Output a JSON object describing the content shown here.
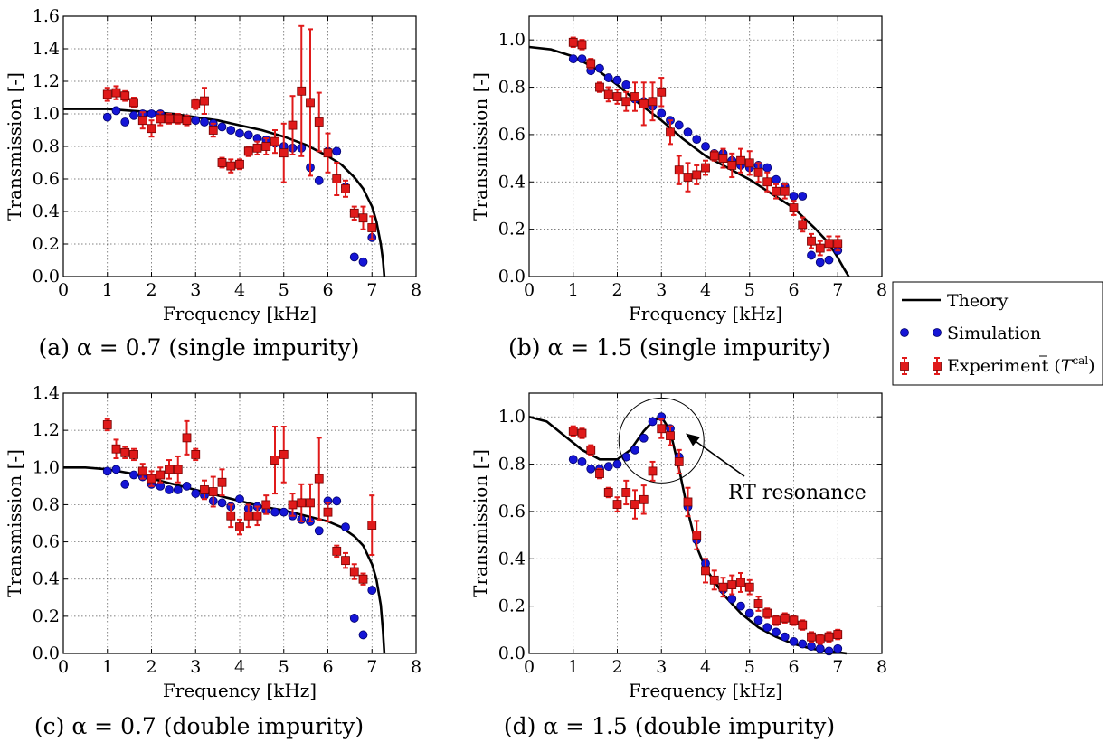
{
  "legend": {
    "theory": "Theory",
    "simulation": "Simulation",
    "experiment": "Experiment",
    "experiment_symbol_base": "T",
    "experiment_symbol_sup": "cal"
  },
  "colors": {
    "theory": "#000000",
    "simulation": "#1515d6",
    "experiment": "#e01a1a"
  },
  "chart_data": [
    {
      "type": "scatter",
      "caption": "(a) α = 0.7 (single impurity)",
      "xlabel": "Frequency [kHz]",
      "ylabel": "Transmission [-]",
      "xlim": [
        0,
        8
      ],
      "ylim": [
        0,
        1.6
      ],
      "xticks": [
        "0",
        "1",
        "2",
        "3",
        "4",
        "5",
        "6",
        "7",
        "8"
      ],
      "yticks": [
        "0.0",
        "0.2",
        "0.4",
        "0.6",
        "0.8",
        "1.0",
        "1.2",
        "1.4",
        "1.6"
      ],
      "grid": true,
      "theory": {
        "x": [
          0,
          0.5,
          1,
          1.5,
          2,
          2.5,
          3,
          3.5,
          4,
          4.5,
          5,
          5.5,
          6,
          6.3,
          6.6,
          6.8,
          7,
          7.1,
          7.2,
          7.25,
          7.28
        ],
        "y": [
          1.03,
          1.03,
          1.03,
          1.02,
          1.01,
          1.0,
          0.98,
          0.96,
          0.93,
          0.9,
          0.86,
          0.81,
          0.74,
          0.69,
          0.61,
          0.54,
          0.43,
          0.34,
          0.2,
          0.1,
          0.0
        ]
      },
      "simulation": {
        "x": [
          1.0,
          1.2,
          1.4,
          1.6,
          1.8,
          2.0,
          2.2,
          2.4,
          2.6,
          2.8,
          3.0,
          3.2,
          3.4,
          3.6,
          3.8,
          4.0,
          4.2,
          4.4,
          4.6,
          4.8,
          5.0,
          5.2,
          5.4,
          5.6,
          5.8,
          6.0,
          6.2,
          6.4,
          6.6,
          6.8,
          7.0
        ],
        "y": [
          0.98,
          1.02,
          0.95,
          0.99,
          1.0,
          1.0,
          1.0,
          0.98,
          0.97,
          0.97,
          0.96,
          0.95,
          0.94,
          0.92,
          0.9,
          0.88,
          0.87,
          0.85,
          0.84,
          0.82,
          0.8,
          0.79,
          0.79,
          0.67,
          0.59,
          0.77,
          0.77,
          0.55,
          0.12,
          0.09,
          0.24
        ]
      },
      "experiment": {
        "x": [
          1.0,
          1.2,
          1.4,
          1.6,
          1.8,
          2.0,
          2.2,
          2.4,
          2.6,
          2.8,
          3.0,
          3.2,
          3.4,
          3.6,
          3.8,
          4.0,
          4.2,
          4.4,
          4.6,
          4.8,
          5.0,
          5.2,
          5.4,
          5.6,
          5.8,
          6.0,
          6.2,
          6.4,
          6.6,
          6.8,
          7.0
        ],
        "y": [
          1.12,
          1.13,
          1.11,
          1.07,
          0.96,
          0.91,
          0.97,
          0.97,
          0.97,
          0.96,
          1.06,
          1.08,
          0.9,
          0.7,
          0.68,
          0.69,
          0.77,
          0.79,
          0.8,
          0.83,
          0.76,
          0.93,
          1.14,
          1.07,
          0.95,
          0.76,
          0.6,
          0.54,
          0.39,
          0.36,
          0.3
        ],
        "err": [
          0.04,
          0.04,
          0.03,
          0.03,
          0.05,
          0.05,
          0.04,
          0.03,
          0.03,
          0.03,
          0.03,
          0.08,
          0.04,
          0.03,
          0.04,
          0.03,
          0.03,
          0.04,
          0.05,
          0.07,
          0.18,
          0.18,
          0.4,
          0.45,
          0.18,
          0.12,
          0.1,
          0.05,
          0.04,
          0.07,
          0.07
        ]
      }
    },
    {
      "type": "scatter",
      "caption": "(b) α = 1.5 (single impurity)",
      "xlabel": "Frequency [kHz]",
      "ylabel": "Transmission [-]",
      "xlim": [
        0,
        8
      ],
      "ylim": [
        0,
        1.1
      ],
      "xticks": [
        "0",
        "1",
        "2",
        "3",
        "4",
        "5",
        "6",
        "7",
        "8"
      ],
      "yticks": [
        "0.0",
        "0.2",
        "0.4",
        "0.6",
        "0.8",
        "1.0"
      ],
      "grid": true,
      "theory": {
        "x": [
          0,
          0.5,
          1,
          1.5,
          2,
          2.5,
          3,
          3.5,
          4,
          4.5,
          5,
          5.5,
          6,
          6.5,
          6.8,
          7.0,
          7.15,
          7.25
        ],
        "y": [
          0.97,
          0.96,
          0.93,
          0.88,
          0.81,
          0.73,
          0.66,
          0.58,
          0.51,
          0.46,
          0.41,
          0.35,
          0.29,
          0.2,
          0.14,
          0.08,
          0.03,
          0.0
        ]
      },
      "simulation": {
        "x": [
          1.0,
          1.2,
          1.4,
          1.6,
          1.8,
          2.0,
          2.2,
          2.4,
          2.6,
          2.8,
          3.0,
          3.2,
          3.4,
          3.6,
          3.8,
          4.0,
          4.2,
          4.4,
          4.6,
          4.8,
          5.0,
          5.2,
          5.4,
          5.6,
          5.8,
          6.0,
          6.2,
          6.4,
          6.6,
          6.8,
          7.0
        ],
        "y": [
          0.92,
          0.92,
          0.87,
          0.88,
          0.84,
          0.83,
          0.81,
          0.75,
          0.74,
          0.72,
          0.69,
          0.66,
          0.64,
          0.61,
          0.58,
          0.55,
          0.52,
          0.52,
          0.49,
          0.47,
          0.46,
          0.47,
          0.46,
          0.41,
          0.38,
          0.34,
          0.34,
          0.09,
          0.06,
          0.07,
          0.11
        ]
      },
      "experiment": {
        "x": [
          1.0,
          1.2,
          1.4,
          1.6,
          1.8,
          2.0,
          2.2,
          2.4,
          2.6,
          2.8,
          3.0,
          3.2,
          3.4,
          3.6,
          3.8,
          4.0,
          4.2,
          4.4,
          4.6,
          4.8,
          5.0,
          5.2,
          5.4,
          5.6,
          5.8,
          6.0,
          6.2,
          6.4,
          6.6,
          6.8,
          7.0
        ],
        "y": [
          0.99,
          0.98,
          0.9,
          0.8,
          0.77,
          0.76,
          0.74,
          0.76,
          0.73,
          0.74,
          0.78,
          0.61,
          0.45,
          0.42,
          0.43,
          0.46,
          0.51,
          0.5,
          0.47,
          0.49,
          0.48,
          0.44,
          0.4,
          0.36,
          0.36,
          0.29,
          0.22,
          0.15,
          0.12,
          0.14,
          0.14
        ]
      },
      "experiment_err": [
        0.02,
        0.02,
        0.02,
        0.02,
        0.03,
        0.03,
        0.04,
        0.06,
        0.09,
        0.08,
        0.06,
        0.05,
        0.06,
        0.06,
        0.04,
        0.03,
        0.02,
        0.04,
        0.05,
        0.05,
        0.05,
        0.04,
        0.04,
        0.03,
        0.03,
        0.03,
        0.03,
        0.03,
        0.03,
        0.03,
        0.03
      ]
    },
    {
      "type": "scatter",
      "caption": "(c) α = 0.7 (double impurity)",
      "xlabel": "Frequency [kHz]",
      "ylabel": "Transmission [-]",
      "xlim": [
        0,
        8
      ],
      "ylim": [
        0,
        1.4
      ],
      "xticks": [
        "0",
        "1",
        "2",
        "3",
        "4",
        "5",
        "6",
        "7",
        "8"
      ],
      "yticks": [
        "0.0",
        "0.2",
        "0.4",
        "0.6",
        "0.8",
        "1.0",
        "1.2",
        "1.4"
      ],
      "grid": true,
      "theory": {
        "x": [
          0,
          0.5,
          1,
          1.5,
          2,
          2.5,
          3,
          3.5,
          4,
          4.5,
          5,
          5.5,
          6,
          6.3,
          6.6,
          6.8,
          7.0,
          7.1,
          7.2,
          7.25,
          7.28
        ],
        "y": [
          1.0,
          1.0,
          0.99,
          0.97,
          0.94,
          0.91,
          0.88,
          0.85,
          0.82,
          0.79,
          0.77,
          0.74,
          0.71,
          0.68,
          0.63,
          0.58,
          0.48,
          0.4,
          0.26,
          0.12,
          0.0
        ]
      },
      "simulation": {
        "x": [
          1.0,
          1.2,
          1.4,
          1.6,
          1.8,
          2.0,
          2.2,
          2.4,
          2.6,
          2.8,
          3.0,
          3.2,
          3.4,
          3.6,
          3.8,
          4.0,
          4.2,
          4.4,
          4.6,
          4.8,
          5.0,
          5.2,
          5.4,
          5.6,
          5.8,
          6.0,
          6.2,
          6.4,
          6.6,
          6.8,
          7.0
        ],
        "y": [
          0.98,
          0.99,
          0.91,
          0.96,
          0.95,
          0.91,
          0.9,
          0.88,
          0.88,
          0.9,
          0.86,
          0.85,
          0.82,
          0.81,
          0.79,
          0.83,
          0.78,
          0.79,
          0.77,
          0.76,
          0.76,
          0.74,
          0.72,
          0.71,
          0.66,
          0.82,
          0.82,
          0.68,
          0.19,
          0.1,
          0.34
        ]
      },
      "experiment": {
        "x": [
          1.0,
          1.2,
          1.4,
          1.6,
          1.8,
          2.0,
          2.2,
          2.4,
          2.6,
          2.8,
          3.0,
          3.2,
          3.4,
          3.6,
          3.8,
          4.0,
          4.2,
          4.4,
          4.6,
          4.8,
          5.0,
          5.2,
          5.4,
          5.6,
          5.8,
          6.0,
          6.2,
          6.4,
          6.6,
          6.8,
          7.0
        ],
        "y": [
          1.23,
          1.1,
          1.08,
          1.07,
          0.98,
          0.94,
          0.96,
          0.99,
          0.99,
          1.16,
          1.07,
          0.88,
          0.87,
          0.92,
          0.74,
          0.68,
          0.74,
          0.74,
          0.8,
          1.04,
          1.07,
          0.8,
          0.81,
          0.81,
          0.94,
          0.76,
          0.55,
          0.5,
          0.44,
          0.4,
          0.69
        ]
      },
      "experiment_err": [
        0.03,
        0.05,
        0.03,
        0.03,
        0.04,
        0.04,
        0.04,
        0.05,
        0.07,
        0.09,
        0.03,
        0.05,
        0.08,
        0.07,
        0.06,
        0.04,
        0.06,
        0.05,
        0.05,
        0.18,
        0.15,
        0.06,
        0.1,
        0.1,
        0.22,
        0.05,
        0.03,
        0.04,
        0.04,
        0.03,
        0.16
      ]
    },
    {
      "type": "scatter",
      "caption": "(d) α = 1.5 (double impurity)",
      "annotation": "RT resonance",
      "xlabel": "Frequency [kHz]",
      "ylabel": "Transmission [-]",
      "xlim": [
        0,
        8
      ],
      "ylim": [
        0,
        1.1
      ],
      "xticks": [
        "0",
        "1",
        "2",
        "3",
        "4",
        "5",
        "6",
        "7",
        "8"
      ],
      "yticks": [
        "0.0",
        "0.2",
        "0.4",
        "0.6",
        "0.8",
        "1.0"
      ],
      "grid": true,
      "theory": {
        "x": [
          0,
          0.4,
          0.8,
          1.2,
          1.6,
          2.0,
          2.3,
          2.6,
          2.8,
          3.0,
          3.2,
          3.4,
          3.6,
          3.8,
          4.0,
          4.4,
          4.8,
          5.2,
          5.6,
          6.0,
          6.4,
          6.8,
          7.0,
          7.2
        ],
        "y": [
          1.0,
          0.98,
          0.92,
          0.86,
          0.82,
          0.82,
          0.86,
          0.94,
          0.98,
          1.0,
          0.94,
          0.78,
          0.6,
          0.45,
          0.36,
          0.25,
          0.17,
          0.11,
          0.07,
          0.04,
          0.02,
          0.01,
          0.005,
          0.0
        ]
      },
      "simulation": {
        "x": [
          1.0,
          1.2,
          1.4,
          1.6,
          1.8,
          2.0,
          2.2,
          2.4,
          2.6,
          2.8,
          3.0,
          3.2,
          3.4,
          3.6,
          3.8,
          4.0,
          4.2,
          4.4,
          4.6,
          4.8,
          5.0,
          5.2,
          5.4,
          5.6,
          5.8,
          6.0,
          6.2,
          6.4,
          6.6,
          6.8,
          7.0
        ],
        "y": [
          0.82,
          0.81,
          0.78,
          0.78,
          0.79,
          0.8,
          0.83,
          0.86,
          0.91,
          0.98,
          1.0,
          0.95,
          0.83,
          0.62,
          0.48,
          0.38,
          0.31,
          0.27,
          0.23,
          0.2,
          0.17,
          0.14,
          0.11,
          0.09,
          0.07,
          0.05,
          0.04,
          0.03,
          0.02,
          0.01,
          0.02
        ]
      },
      "experiment": {
        "x": [
          1.0,
          1.2,
          1.4,
          1.6,
          1.8,
          2.0,
          2.2,
          2.4,
          2.6,
          2.8,
          3.0,
          3.2,
          3.4,
          3.6,
          3.8,
          4.0,
          4.2,
          4.4,
          4.6,
          4.8,
          5.0,
          5.2,
          5.4,
          5.6,
          5.8,
          6.0,
          6.2,
          6.4,
          6.6,
          6.8,
          7.0
        ],
        "y": [
          0.94,
          0.93,
          0.86,
          0.76,
          0.68,
          0.63,
          0.68,
          0.63,
          0.65,
          0.77,
          0.95,
          0.92,
          0.81,
          0.64,
          0.5,
          0.35,
          0.31,
          0.28,
          0.29,
          0.3,
          0.28,
          0.21,
          0.17,
          0.14,
          0.15,
          0.14,
          0.12,
          0.07,
          0.06,
          0.07,
          0.08
        ]
      },
      "experiment_err": [
        0.02,
        0.02,
        0.02,
        0.02,
        0.02,
        0.03,
        0.05,
        0.06,
        0.06,
        0.04,
        0.04,
        0.04,
        0.05,
        0.06,
        0.06,
        0.05,
        0.04,
        0.04,
        0.04,
        0.04,
        0.03,
        0.03,
        0.02,
        0.02,
        0.02,
        0.02,
        0.02,
        0.02,
        0.02,
        0.02,
        0.02
      ]
    }
  ]
}
